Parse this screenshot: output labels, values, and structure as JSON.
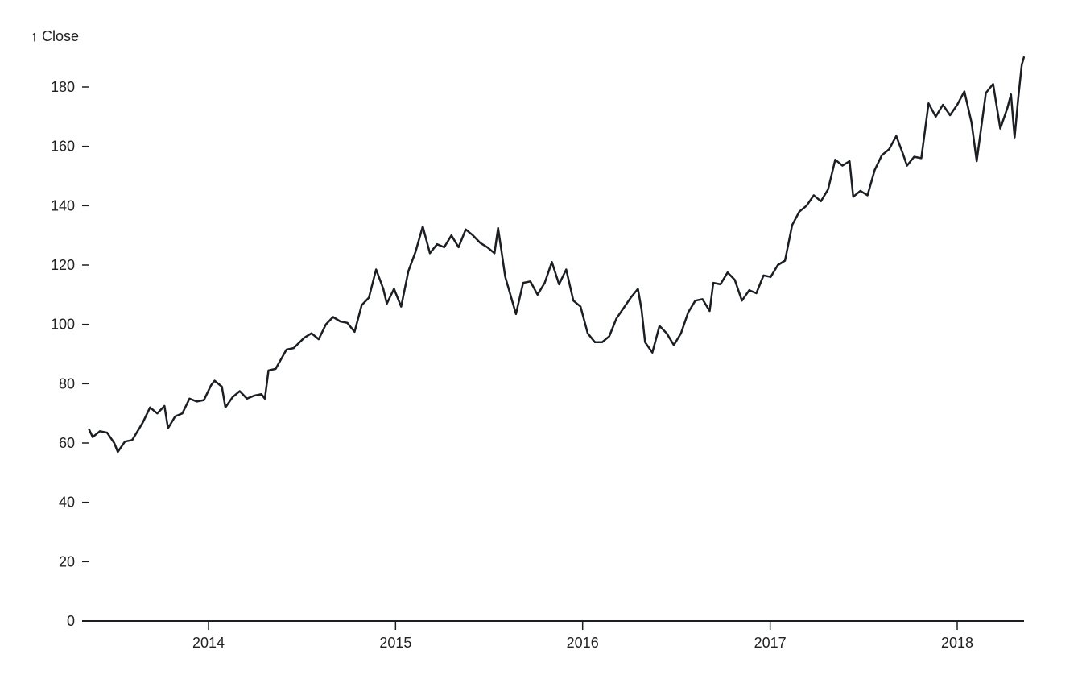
{
  "chart_data": {
    "type": "line",
    "title": "",
    "xlabel": "",
    "ylabel": "↑ Close",
    "ylim": [
      0,
      190
    ],
    "xlim": [
      "2013-05-13",
      "2018-05-11"
    ],
    "grid": false,
    "legend": null,
    "line_color": "#1b1e23",
    "y_ticks": [
      0,
      20,
      40,
      60,
      80,
      100,
      120,
      140,
      160,
      180
    ],
    "x_ticks": [
      "2014",
      "2015",
      "2016",
      "2017",
      "2018"
    ],
    "series": [
      {
        "name": "Close",
        "points": [
          [
            "2013-05-13",
            64.6
          ],
          [
            "2013-05-20",
            62.0
          ],
          [
            "2013-06-03",
            64.0
          ],
          [
            "2013-06-17",
            63.5
          ],
          [
            "2013-07-01",
            60.0
          ],
          [
            "2013-07-08",
            57.0
          ],
          [
            "2013-07-22",
            60.5
          ],
          [
            "2013-08-05",
            61.0
          ],
          [
            "2013-08-19",
            65.0
          ],
          [
            "2013-08-26",
            67.0
          ],
          [
            "2013-09-09",
            72.0
          ],
          [
            "2013-09-23",
            70.0
          ],
          [
            "2013-10-07",
            72.5
          ],
          [
            "2013-10-14",
            65.0
          ],
          [
            "2013-10-28",
            69.0
          ],
          [
            "2013-11-11",
            70.0
          ],
          [
            "2013-11-25",
            75.0
          ],
          [
            "2013-12-09",
            74.0
          ],
          [
            "2013-12-23",
            74.5
          ],
          [
            "2014-01-06",
            79.5
          ],
          [
            "2014-01-13",
            81.0
          ],
          [
            "2014-01-27",
            79.0
          ],
          [
            "2014-02-03",
            72.0
          ],
          [
            "2014-02-17",
            75.5
          ],
          [
            "2014-03-03",
            77.5
          ],
          [
            "2014-03-17",
            75.0
          ],
          [
            "2014-03-31",
            76.0
          ],
          [
            "2014-04-14",
            76.5
          ],
          [
            "2014-04-21",
            75.0
          ],
          [
            "2014-04-28",
            84.5
          ],
          [
            "2014-05-12",
            85.0
          ],
          [
            "2014-06-02",
            91.5
          ],
          [
            "2014-06-16",
            92.0
          ],
          [
            "2014-07-07",
            95.5
          ],
          [
            "2014-07-21",
            97.0
          ],
          [
            "2014-08-04",
            95.0
          ],
          [
            "2014-08-18",
            100.0
          ],
          [
            "2014-09-01",
            102.5
          ],
          [
            "2014-09-15",
            101.0
          ],
          [
            "2014-09-29",
            100.5
          ],
          [
            "2014-10-13",
            97.5
          ],
          [
            "2014-10-27",
            106.5
          ],
          [
            "2014-11-10",
            109.0
          ],
          [
            "2014-11-24",
            118.5
          ],
          [
            "2014-12-08",
            112.0
          ],
          [
            "2014-12-15",
            107.0
          ],
          [
            "2014-12-29",
            112.0
          ],
          [
            "2015-01-12",
            106.0
          ],
          [
            "2015-01-26",
            118.0
          ],
          [
            "2015-02-09",
            124.5
          ],
          [
            "2015-02-23",
            133.0
          ],
          [
            "2015-03-09",
            124.0
          ],
          [
            "2015-03-23",
            127.0
          ],
          [
            "2015-04-06",
            126.0
          ],
          [
            "2015-04-20",
            130.0
          ],
          [
            "2015-05-04",
            126.0
          ],
          [
            "2015-05-18",
            132.0
          ],
          [
            "2015-06-01",
            130.0
          ],
          [
            "2015-06-15",
            127.5
          ],
          [
            "2015-06-29",
            126.0
          ],
          [
            "2015-07-13",
            124.0
          ],
          [
            "2015-07-20",
            132.5
          ],
          [
            "2015-08-03",
            116.0
          ],
          [
            "2015-08-24",
            103.5
          ],
          [
            "2015-09-07",
            114.0
          ],
          [
            "2015-09-21",
            114.5
          ],
          [
            "2015-10-05",
            110.0
          ],
          [
            "2015-10-19",
            114.0
          ],
          [
            "2015-11-02",
            121.0
          ],
          [
            "2015-11-16",
            113.5
          ],
          [
            "2015-11-30",
            118.5
          ],
          [
            "2015-12-14",
            108.0
          ],
          [
            "2015-12-28",
            106.0
          ],
          [
            "2016-01-11",
            97.0
          ],
          [
            "2016-01-25",
            94.0
          ],
          [
            "2016-02-08",
            94.0
          ],
          [
            "2016-02-22",
            96.0
          ],
          [
            "2016-03-07",
            102.0
          ],
          [
            "2016-03-21",
            105.5
          ],
          [
            "2016-04-04",
            109.0
          ],
          [
            "2016-04-18",
            112.0
          ],
          [
            "2016-04-25",
            105.0
          ],
          [
            "2016-05-02",
            94.0
          ],
          [
            "2016-05-16",
            90.5
          ],
          [
            "2016-05-30",
            99.5
          ],
          [
            "2016-06-13",
            97.0
          ],
          [
            "2016-06-27",
            93.0
          ],
          [
            "2016-07-11",
            97.0
          ],
          [
            "2016-07-25",
            104.0
          ],
          [
            "2016-08-08",
            108.0
          ],
          [
            "2016-08-22",
            108.5
          ],
          [
            "2016-09-05",
            104.5
          ],
          [
            "2016-09-12",
            114.0
          ],
          [
            "2016-09-26",
            113.5
          ],
          [
            "2016-10-10",
            117.5
          ],
          [
            "2016-10-24",
            115.0
          ],
          [
            "2016-11-07",
            108.0
          ],
          [
            "2016-11-21",
            111.5
          ],
          [
            "2016-12-05",
            110.5
          ],
          [
            "2016-12-19",
            116.5
          ],
          [
            "2017-01-02",
            116.0
          ],
          [
            "2017-01-16",
            120.0
          ],
          [
            "2017-01-30",
            121.5
          ],
          [
            "2017-02-13",
            133.5
          ],
          [
            "2017-02-27",
            138.0
          ],
          [
            "2017-03-13",
            140.0
          ],
          [
            "2017-03-27",
            143.5
          ],
          [
            "2017-04-10",
            141.5
          ],
          [
            "2017-04-24",
            145.5
          ],
          [
            "2017-05-08",
            155.5
          ],
          [
            "2017-05-22",
            153.5
          ],
          [
            "2017-06-05",
            155.0
          ],
          [
            "2017-06-12",
            143.0
          ],
          [
            "2017-06-26",
            145.0
          ],
          [
            "2017-07-10",
            143.5
          ],
          [
            "2017-07-24",
            152.0
          ],
          [
            "2017-08-07",
            157.0
          ],
          [
            "2017-08-21",
            159.0
          ],
          [
            "2017-09-04",
            163.5
          ],
          [
            "2017-09-18",
            157.0
          ],
          [
            "2017-09-25",
            153.5
          ],
          [
            "2017-10-09",
            156.5
          ],
          [
            "2017-10-23",
            156.0
          ],
          [
            "2017-11-06",
            174.5
          ],
          [
            "2017-11-20",
            170.0
          ],
          [
            "2017-12-04",
            174.0
          ],
          [
            "2017-12-18",
            170.5
          ],
          [
            "2018-01-01",
            174.0
          ],
          [
            "2018-01-15",
            178.5
          ],
          [
            "2018-01-29",
            168.0
          ],
          [
            "2018-02-08",
            155.0
          ],
          [
            "2018-02-26",
            178.0
          ],
          [
            "2018-03-12",
            181.0
          ],
          [
            "2018-03-26",
            166.0
          ],
          [
            "2018-04-09",
            173.0
          ],
          [
            "2018-04-16",
            177.5
          ],
          [
            "2018-04-23",
            163.0
          ],
          [
            "2018-04-30",
            176.0
          ],
          [
            "2018-05-07",
            187.5
          ],
          [
            "2018-05-11",
            190.0
          ]
        ]
      }
    ]
  }
}
